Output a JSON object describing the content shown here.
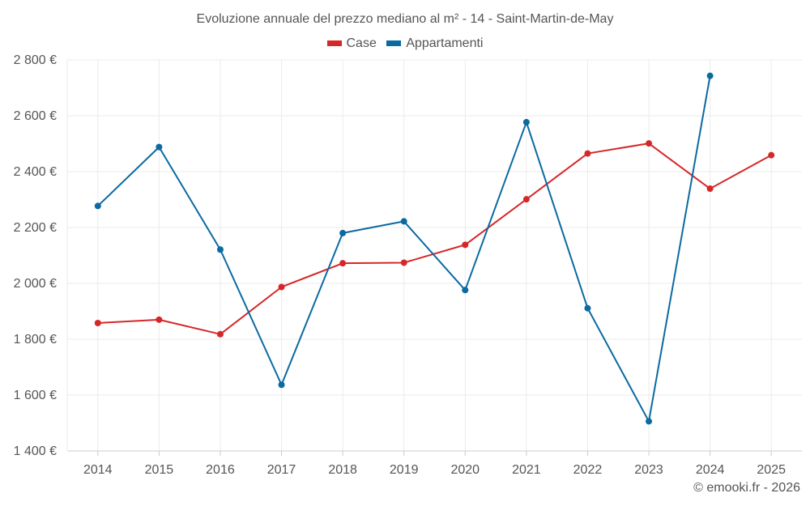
{
  "chart_data": {
    "type": "line",
    "title": "Evoluzione annuale del prezzo mediano al m² - 14 - Saint-Martin-de-May",
    "xlabel": "",
    "ylabel": "",
    "categories": [
      "2014",
      "2015",
      "2016",
      "2017",
      "2018",
      "2019",
      "2020",
      "2021",
      "2022",
      "2023",
      "2024",
      "2025"
    ],
    "ylim": [
      1400,
      2800
    ],
    "yticks": [
      1400,
      1600,
      1800,
      2000,
      2200,
      2400,
      2600,
      2800
    ],
    "ytick_labels": [
      "1 400 €",
      "1 600 €",
      "1 800 €",
      "2 000 €",
      "2 200 €",
      "2 400 €",
      "2 600 €",
      "2 800 €"
    ],
    "grid": true,
    "legend_position": "top-center",
    "series": [
      {
        "name": "Case",
        "color": "#d62728",
        "values": [
          1858,
          1870,
          1818,
          1987,
          2072,
          2074,
          2138,
          2301,
          2465,
          2501,
          2339,
          2459
        ]
      },
      {
        "name": "Appartamenti",
        "color": "#0a6aa1",
        "values": [
          2277,
          2488,
          2121,
          1637,
          2180,
          2222,
          1976,
          2577,
          1911,
          1506,
          2743,
          null
        ]
      }
    ]
  },
  "footer": {
    "copyright": "© emooki.fr - 2026"
  }
}
